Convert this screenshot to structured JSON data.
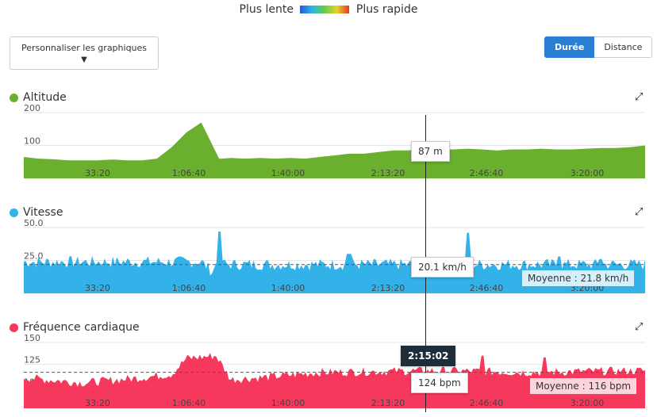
{
  "legend": {
    "slow": "Plus lente",
    "fast": "Plus rapide"
  },
  "customize_label": "Personnaliser les graphiques",
  "toggle": {
    "duration": "Durée",
    "distance": "Distance"
  },
  "x_ticks": [
    "33:20",
    "1:06:40",
    "1:40:00",
    "2:13:20",
    "2:46:40",
    "3:20:00"
  ],
  "cursor_time": "2:15:02",
  "chart_data": [
    {
      "type": "area",
      "title": "Altitude",
      "color": "#6ab02e",
      "yticks": [
        "200",
        "100",
        "0"
      ],
      "ylim": [
        0,
        200
      ],
      "tooltip": "87 m",
      "x": [
        0,
        5,
        10,
        15,
        20,
        25,
        30,
        35,
        40,
        45,
        50,
        55,
        60,
        66,
        67,
        70,
        75,
        80,
        85,
        90,
        95,
        100,
        105,
        110,
        115,
        120,
        125,
        130,
        135,
        140,
        145,
        150,
        155,
        160,
        165,
        170,
        175,
        180,
        185,
        190,
        195,
        200,
        205,
        210
      ],
      "values": [
        65,
        60,
        58,
        55,
        55,
        55,
        57,
        55,
        55,
        60,
        95,
        140,
        170,
        60,
        60,
        62,
        60,
        62,
        60,
        62,
        60,
        65,
        70,
        75,
        75,
        80,
        85,
        85,
        90,
        88,
        88,
        90,
        88,
        85,
        88,
        88,
        90,
        88,
        88,
        90,
        92,
        92,
        95,
        100
      ]
    },
    {
      "type": "area",
      "title": "Vitesse",
      "color": "#33b2ea",
      "yticks": [
        "50.0",
        "25.0",
        "0.0"
      ],
      "ylim": [
        0,
        50
      ],
      "tooltip": "20.1 km/h",
      "average": "Moyenne : 21.8 km/h",
      "avg_value": 21.8
    },
    {
      "type": "area",
      "title": "Fréquence cardiaque",
      "color": "#f5385c",
      "yticks": [
        "150",
        "125",
        "100",
        "75"
      ],
      "ylim": [
        75,
        150
      ],
      "tooltip": "124 bpm",
      "average": "Moyenne : 116 bpm",
      "avg_value": 116
    }
  ]
}
